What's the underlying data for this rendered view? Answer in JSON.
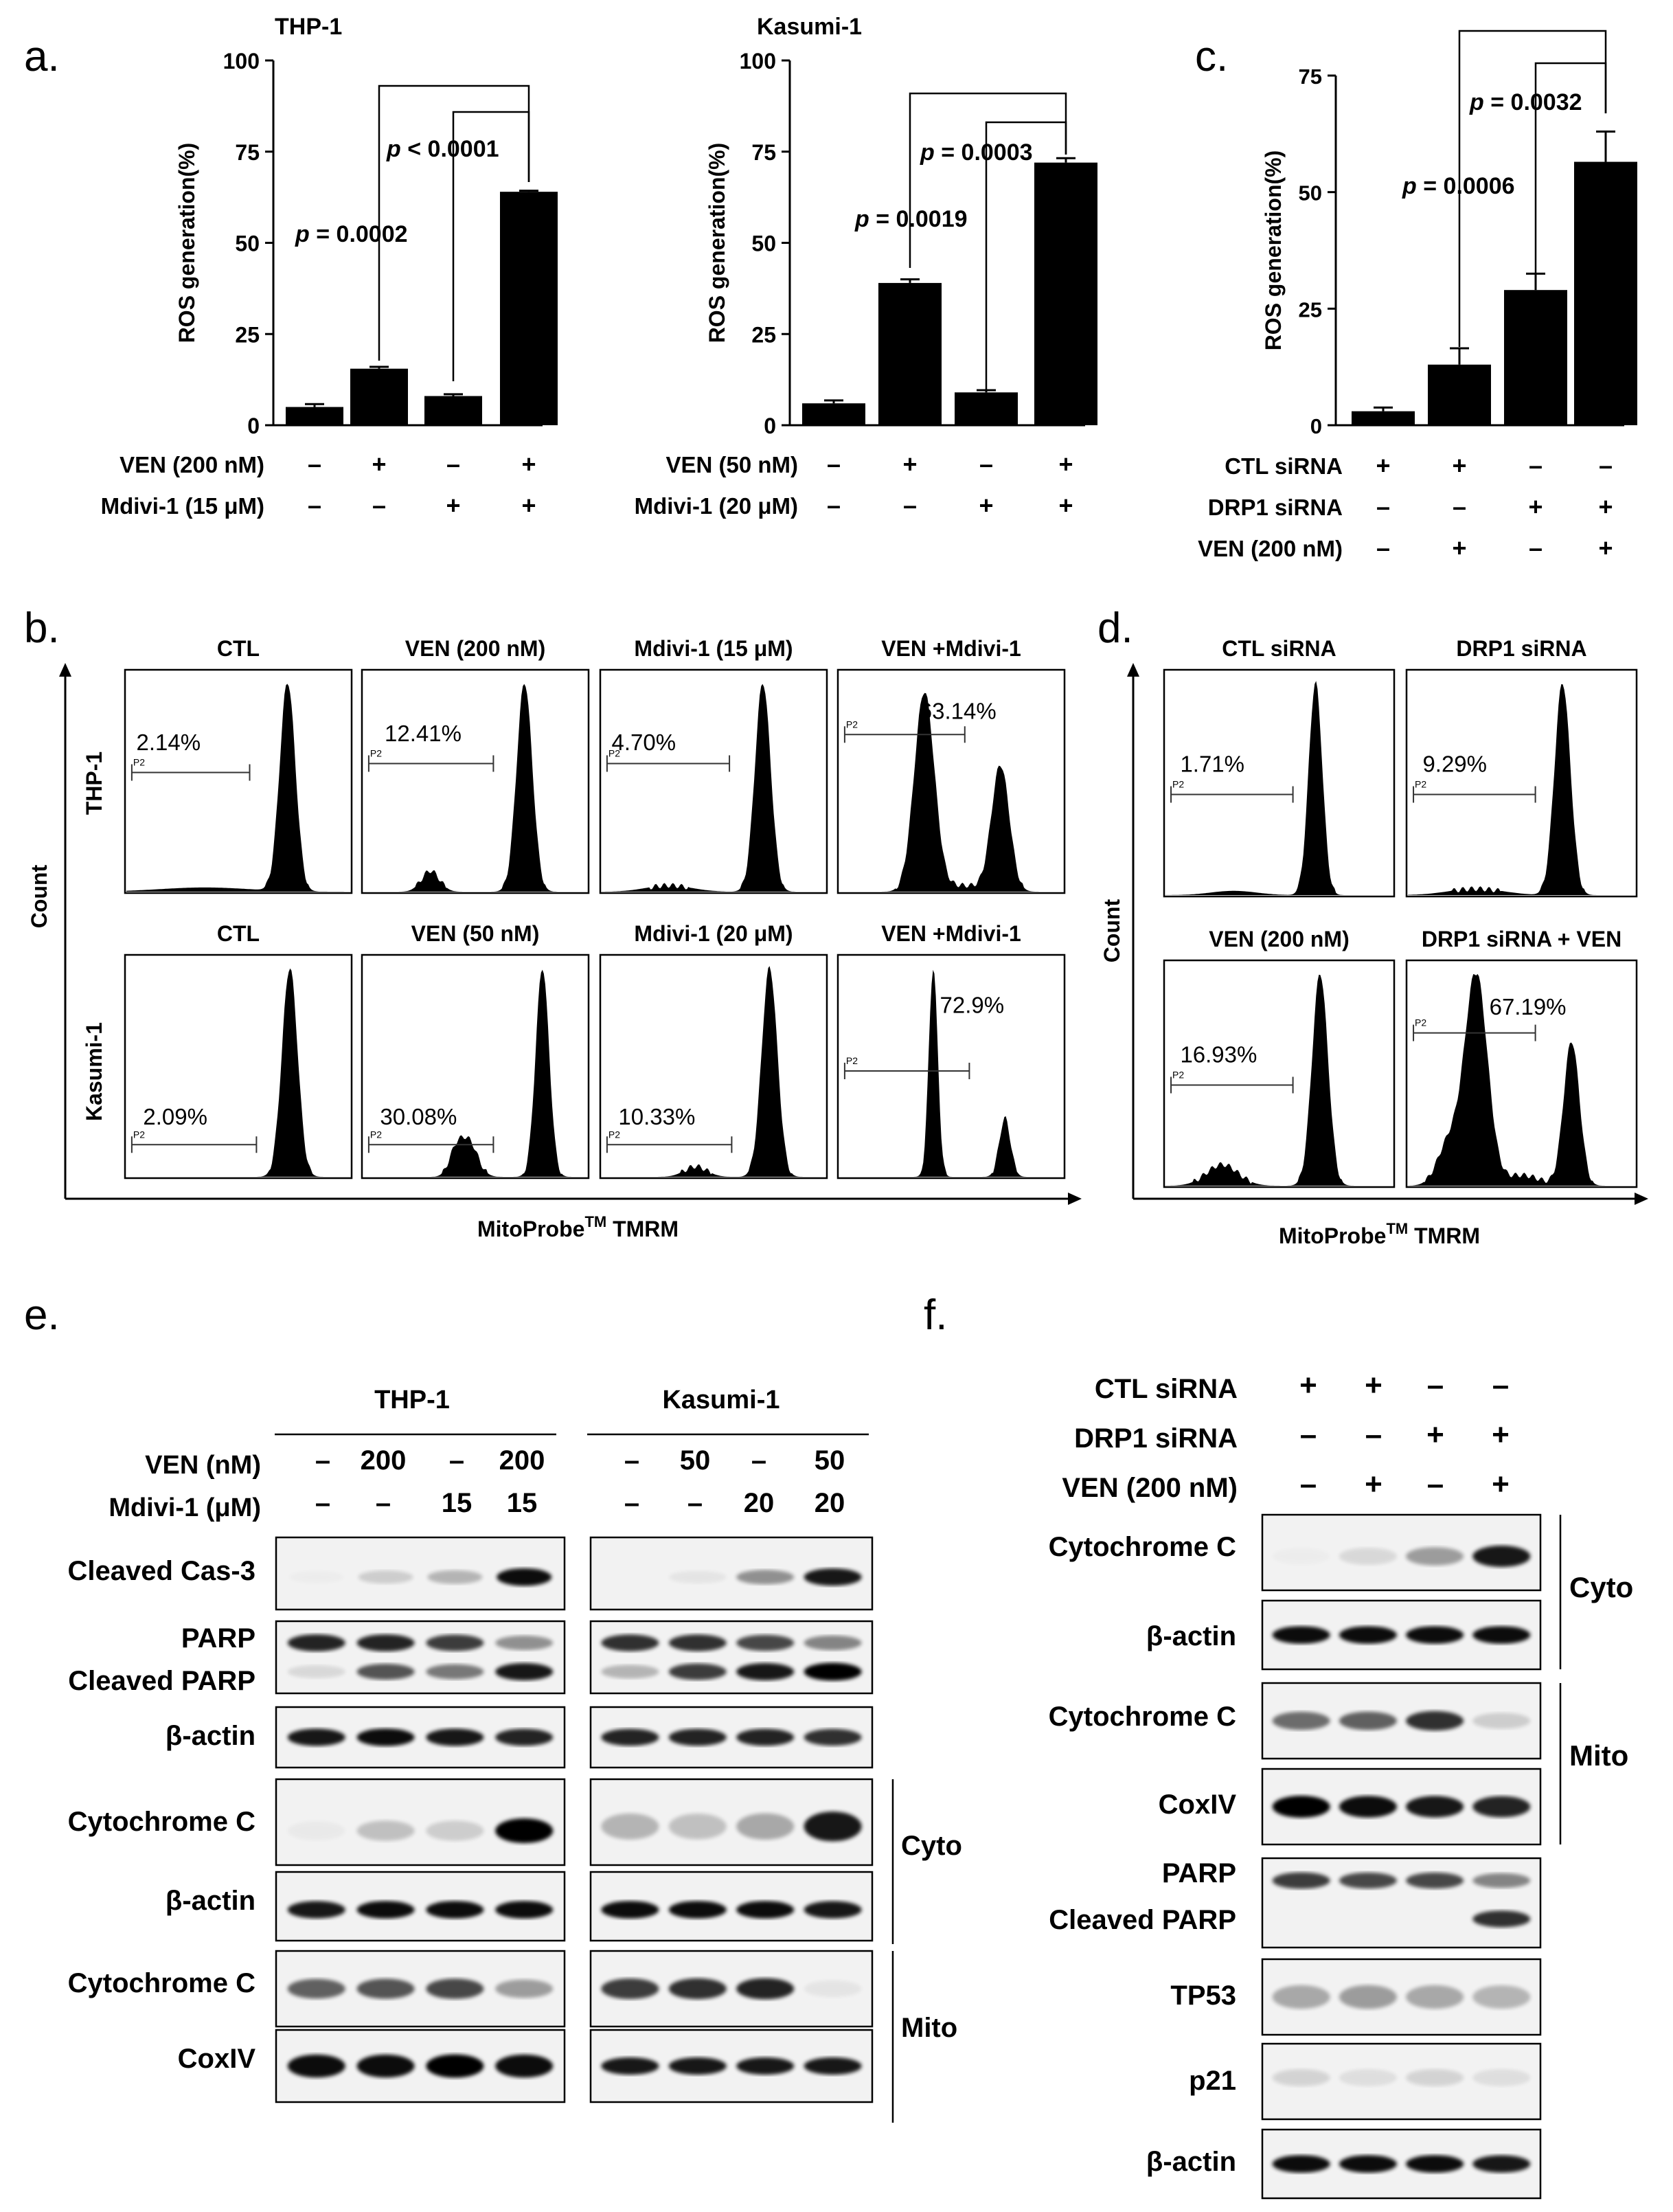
{
  "panels": {
    "a": "a.",
    "b": "b.",
    "c": "c.",
    "d": "d.",
    "e": "e.",
    "f": "f."
  },
  "common": {
    "ros_ylabel": "ROS generation(%)",
    "minus": "–",
    "plus": "+",
    "count": "Count",
    "mitoprobe": "MitoProbe",
    "tm": "TM",
    "tmrm": " TMRM",
    "p_italic": "p",
    "gate": "P2",
    "cyto": "Cyto",
    "mito": "Mito"
  },
  "chart_data": [
    {
      "type": "bar",
      "id": "a-thp1",
      "title": "THP-1",
      "ylabel": "ROS generation(%)",
      "ylim": [
        0,
        100
      ],
      "yticks": [
        "0",
        "25",
        "50",
        "75",
        "100"
      ],
      "values": [
        5,
        15.5,
        8,
        64
      ],
      "errors": [
        0.8,
        0.5,
        0.5,
        0.3
      ],
      "conditions": [
        {
          "label": "VEN (200 nM)",
          "signs": [
            "–",
            "+",
            "–",
            "+"
          ]
        },
        {
          "label": "Mdivi-1 (15 μM)",
          "signs": [
            "–",
            "–",
            "+",
            "+"
          ]
        }
      ],
      "comparisons": [
        {
          "from": 1,
          "to": 3,
          "label": " = 0.0002"
        },
        {
          "from": 2,
          "to": 3,
          "label": " < 0.0001"
        }
      ]
    },
    {
      "type": "bar",
      "id": "a-kasumi1",
      "title": "Kasumi-1",
      "ylabel": "ROS generation(%)",
      "ylim": [
        0,
        100
      ],
      "yticks": [
        "0",
        "25",
        "50",
        "75",
        "100"
      ],
      "values": [
        6,
        39,
        9,
        72
      ],
      "errors": [
        0.8,
        1.0,
        0.6,
        1.2
      ],
      "conditions": [
        {
          "label": "VEN (50 nM)",
          "signs": [
            "–",
            "+",
            "–",
            "+"
          ]
        },
        {
          "label": "Mdivi-1 (20 μM)",
          "signs": [
            "–",
            "–",
            "+",
            "+"
          ]
        }
      ],
      "comparisons": [
        {
          "from": 1,
          "to": 3,
          "label": " = 0.0019"
        },
        {
          "from": 2,
          "to": 3,
          "label": " = 0.0003"
        }
      ]
    },
    {
      "type": "bar",
      "id": "c-siRNA",
      "title": "",
      "ylabel": "ROS generation(%)",
      "ylim": [
        0,
        75
      ],
      "yticks": [
        "0",
        "25",
        "50",
        "75"
      ],
      "values": [
        3,
        13,
        29,
        56.5
      ],
      "errors": [
        0.8,
        3.5,
        3.5,
        6.5
      ],
      "conditions": [
        {
          "label": "CTL siRNA",
          "signs": [
            "+",
            "+",
            "–",
            "–"
          ]
        },
        {
          "label": "DRP1 siRNA",
          "signs": [
            "–",
            "–",
            "+",
            "+"
          ]
        },
        {
          "label": "VEN (200 nM)",
          "signs": [
            "–",
            "+",
            "–",
            "+"
          ]
        }
      ],
      "comparisons": [
        {
          "from": 1,
          "to": 3,
          "label": " = 0.0006"
        },
        {
          "from": 2,
          "to": 3,
          "label": " = 0.0032"
        }
      ]
    },
    {
      "type": "histogram",
      "id": "b-flow",
      "row_labels": [
        "THP-1",
        "Kasumi-1"
      ],
      "xlabel": "MitoProbe TMRM",
      "ylabel": "Count",
      "titles": [
        [
          "CTL",
          "VEN (200 nM)",
          "Mdivi-1 (15 μM)",
          "VEN +Mdivi-1"
        ],
        [
          "CTL",
          "VEN (50 nM)",
          "Mdivi-1 (20 μM)",
          "VEN +Mdivi-1"
        ]
      ],
      "percents": [
        [
          "2.14%",
          "12.41%",
          "4.70%",
          "63.14%"
        ],
        [
          "2.09%",
          "30.08%",
          "10.33%",
          "72.9%"
        ]
      ]
    },
    {
      "type": "histogram",
      "id": "d-flow",
      "xlabel": "MitoProbe TMRM",
      "ylabel": "Count",
      "titles": [
        [
          "CTL siRNA",
          "DRP1 siRNA"
        ],
        [
          "VEN (200 nM)",
          "DRP1 siRNA + VEN"
        ]
      ],
      "percents": [
        [
          "1.71%",
          "9.29%"
        ],
        [
          "16.93%",
          "67.19%"
        ]
      ]
    }
  ],
  "blot_e": {
    "groups": [
      "THP-1",
      "Kasumi-1"
    ],
    "treatments": [
      {
        "label": "VEN (nM)",
        "thp": [
          "–",
          "200",
          "–",
          "200"
        ],
        "kas": [
          "–",
          "50",
          "–",
          "50"
        ]
      },
      {
        "label": "Mdivi-1 (μM)",
        "thp": [
          "–",
          "–",
          "15",
          "15"
        ],
        "kas": [
          "–",
          "–",
          "20",
          "20"
        ]
      }
    ],
    "rows": [
      "Cleaved Cas-3",
      "PARP",
      "Cleaved PARP",
      "β-actin",
      "Cytochrome C",
      "β-actin",
      "Cytochrome C",
      "CoxIV"
    ]
  },
  "blot_f": {
    "treatments": [
      {
        "label": "CTL siRNA",
        "signs": [
          "+",
          "+",
          "–",
          "–"
        ]
      },
      {
        "label": "DRP1 siRNA",
        "signs": [
          "–",
          "–",
          "+",
          "+"
        ]
      },
      {
        "label": "VEN (200 nM)",
        "signs": [
          "–",
          "+",
          "–",
          "+"
        ]
      }
    ],
    "rows": [
      "Cytochrome C",
      "β-actin",
      "Cytochrome C",
      "CoxIV",
      "PARP",
      "Cleaved PARP",
      "TP53",
      "p21",
      "β-actin"
    ]
  }
}
